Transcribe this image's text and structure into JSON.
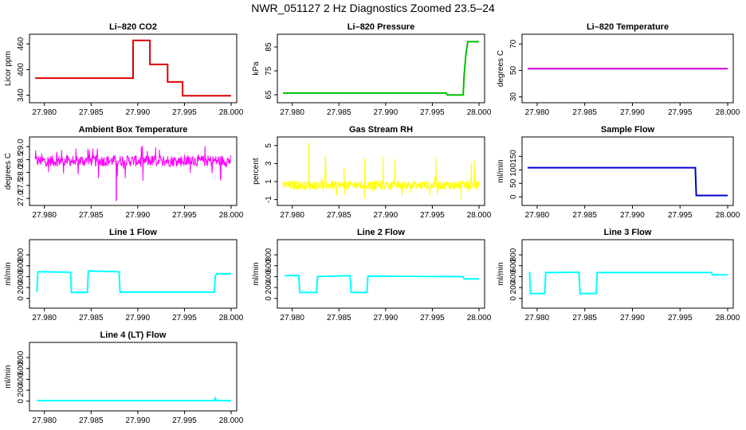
{
  "page": {
    "title": "NWR_051127  2 Hz Diagnostics Zoomed 23.5–24"
  },
  "chart_data": [
    {
      "type": "line",
      "title": "Li–820 CO2",
      "ylabel": "Licor ppm",
      "xlim": [
        27.979,
        28.0
      ],
      "ylim": [
        330,
        475
      ],
      "xticks": [
        27.98,
        27.985,
        27.99,
        27.995,
        28.0
      ],
      "yticks": [
        340,
        400,
        460
      ],
      "color": "#e00000",
      "style": "line",
      "series": [
        {
          "x": [
            27.979,
            27.9895,
            27.9895,
            27.9913,
            27.9913,
            27.9932,
            27.9932,
            27.9948,
            27.9948,
            28.0
          ],
          "y": [
            380,
            380,
            468,
            468,
            412,
            412,
            371,
            371,
            339,
            339
          ]
        }
      ]
    },
    {
      "type": "line",
      "title": "Li–820 Pressure",
      "ylabel": "kPa",
      "xlim": [
        27.979,
        28.0
      ],
      "ylim": [
        63,
        89
      ],
      "xticks": [
        27.98,
        27.985,
        27.99,
        27.995,
        28.0
      ],
      "yticks": [
        65,
        75,
        85
      ],
      "color": "#00c000",
      "style": "line",
      "series": [
        {
          "x": [
            27.979,
            27.9965,
            27.9966,
            27.9983,
            27.9984,
            27.9986,
            27.9988,
            28.0
          ],
          "y": [
            65.7,
            65.7,
            64.9,
            64.9,
            73,
            82,
            87.2,
            87.2
          ]
        }
      ]
    },
    {
      "type": "line",
      "title": "Li–820 Temperature",
      "ylabel": "degrees C",
      "xlim": [
        27.979,
        28.0
      ],
      "ylim": [
        28,
        75
      ],
      "xticks": [
        27.98,
        27.985,
        27.99,
        27.995,
        28.0
      ],
      "yticks": [
        30,
        50,
        70
      ],
      "color": "#d000d0",
      "style": "line",
      "series": [
        {
          "x": [
            27.979,
            28.0
          ],
          "y": [
            51.3,
            51.3
          ]
        }
      ]
    },
    {
      "type": "line",
      "title": "Ambient Box Temperature",
      "ylabel": "degrees C",
      "xlim": [
        27.979,
        28.0
      ],
      "ylim": [
        26.85,
        29.25
      ],
      "xticks": [
        27.98,
        27.985,
        27.99,
        27.995,
        28.0
      ],
      "yticks": [
        27.0,
        27.5,
        28.0,
        28.5,
        29.0
      ],
      "color": "#ff00ff",
      "style": "noise",
      "noise": {
        "base": 28.45,
        "spread": 0.22,
        "spikes_up": 0.6,
        "spikes_down": 0.8,
        "deep_spike_x": 27.9877,
        "deep_spike_y": 26.9
      },
      "series": [
        {
          "x": [
            27.979,
            28.0
          ],
          "y": [
            28.45,
            28.45
          ]
        }
      ]
    },
    {
      "type": "line",
      "title": "Gas Stream RH",
      "ylabel": "percent",
      "xlim": [
        27.979,
        28.0
      ],
      "ylim": [
        -1.3,
        5.6
      ],
      "xticks": [
        27.98,
        27.985,
        27.99,
        27.995,
        28.0
      ],
      "yticks": [
        -1,
        1,
        3,
        5
      ],
      "color": "#ffff00",
      "style": "noise",
      "noise": {
        "base": 0.6,
        "spread": 0.5,
        "spikes_up": 3.5,
        "spikes_down": 1.6,
        "deep_spike_x": 27.9818,
        "deep_spike_y": 5.3
      },
      "series": [
        {
          "x": [
            27.979,
            28.0
          ],
          "y": [
            0.6,
            0.6
          ]
        }
      ]
    },
    {
      "type": "line",
      "title": "Sample Flow",
      "ylabel": "ml/min",
      "xlim": [
        27.979,
        28.0
      ],
      "ylim": [
        -20,
        210
      ],
      "xticks": [
        27.98,
        27.985,
        27.99,
        27.995,
        28.0
      ],
      "yticks": [
        0,
        50,
        100,
        150
      ],
      "color": "#0000d0",
      "style": "line",
      "series": [
        {
          "x": [
            27.979,
            27.9966,
            27.9967,
            28.0
          ],
          "y": [
            108,
            108,
            5,
            5
          ]
        }
      ]
    },
    {
      "type": "line",
      "title": "Line 1 Flow",
      "ylabel": "ml/min",
      "xlim": [
        27.979,
        28.0
      ],
      "ylim": [
        -120,
        1020
      ],
      "xticks": [
        27.98,
        27.985,
        27.99,
        27.995,
        28.0
      ],
      "yticks": [
        0,
        200,
        400,
        600,
        800
      ],
      "color": "#00ffff",
      "style": "line",
      "series": [
        {
          "x": [
            27.9792,
            27.9793,
            27.9828,
            27.9829,
            27.9846,
            27.9847,
            27.988,
            27.9881,
            27.9982,
            27.9983,
            27.9985,
            28.0
          ],
          "y": [
            120,
            490,
            480,
            110,
            110,
            505,
            490,
            115,
            115,
            420,
            455,
            455
          ]
        }
      ]
    },
    {
      "type": "line",
      "title": "Line 2 Flow",
      "ylabel": "ml/min",
      "xlim": [
        27.979,
        28.0
      ],
      "ylim": [
        -120,
        1020
      ],
      "xticks": [
        27.98,
        27.985,
        27.99,
        27.995,
        28.0
      ],
      "yticks": [
        0,
        200,
        400,
        600,
        800
      ],
      "color": "#00ffff",
      "style": "line",
      "series": [
        {
          "x": [
            27.9792,
            27.9807,
            27.9808,
            27.9826,
            27.9827,
            27.9862,
            27.9863,
            27.988,
            27.9881,
            27.9983,
            27.9984,
            28.0
          ],
          "y": [
            420,
            420,
            110,
            110,
            400,
            420,
            110,
            110,
            410,
            400,
            360,
            360
          ]
        }
      ]
    },
    {
      "type": "line",
      "title": "Line 3 Flow",
      "ylabel": "ml/min",
      "xlim": [
        27.979,
        28.0
      ],
      "ylim": [
        -120,
        1020
      ],
      "xticks": [
        27.98,
        27.985,
        27.99,
        27.995,
        28.0
      ],
      "yticks": [
        0,
        200,
        400,
        600,
        800
      ],
      "color": "#00ffff",
      "style": "line",
      "series": [
        {
          "x": [
            27.9792,
            27.9793,
            27.9808,
            27.9809,
            27.9844,
            27.9845,
            27.9862,
            27.9863,
            27.9983,
            27.9984,
            28.0
          ],
          "y": [
            490,
            90,
            90,
            475,
            480,
            90,
            90,
            475,
            475,
            435,
            435
          ]
        }
      ]
    },
    {
      "type": "line",
      "title": "Line 4 (LT) Flow",
      "ylabel": "ml/min",
      "xlim": [
        27.979,
        28.0
      ],
      "ylim": [
        -120,
        1020
      ],
      "xticks": [
        27.98,
        27.985,
        27.99,
        27.995,
        28.0
      ],
      "yticks": [
        0,
        200,
        400,
        600,
        800
      ],
      "color": "#00ffff",
      "style": "line",
      "series": [
        {
          "x": [
            27.9792,
            27.9982,
            27.9983,
            27.9984,
            28.0
          ],
          "y": [
            10,
            10,
            55,
            10,
            10
          ]
        }
      ]
    }
  ]
}
